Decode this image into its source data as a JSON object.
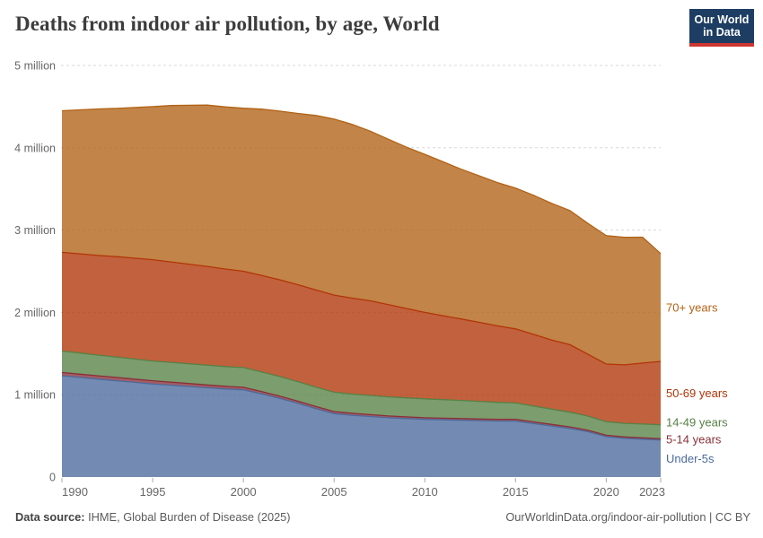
{
  "header": {
    "title": "Deaths from indoor air pollution, by age, World",
    "logo": {
      "line1": "Our World",
      "line2": "in Data",
      "bg_color": "#1d3d63",
      "accent_color": "#cd3730"
    }
  },
  "footer": {
    "source_label": "Data source:",
    "source_value": " IHME, Global Burden of Disease (2025)",
    "right_text": "OurWorldinData.org/indoor-air-pollution | CC BY"
  },
  "chart_data": {
    "type": "area",
    "stacked": true,
    "title": "Deaths from indoor air pollution, by age, World",
    "values_unit": "millions of deaths per year",
    "x": [
      1990,
      1991,
      1992,
      1993,
      1994,
      1995,
      1996,
      1997,
      1998,
      1999,
      2000,
      2001,
      2002,
      2003,
      2004,
      2005,
      2006,
      2007,
      2008,
      2009,
      2010,
      2011,
      2012,
      2013,
      2014,
      2015,
      2016,
      2017,
      2018,
      2019,
      2020,
      2021,
      2022,
      2023
    ],
    "series": [
      {
        "name": "Under-5s",
        "color": "#4C6A9C",
        "values": [
          1.23,
          1.21,
          1.19,
          1.17,
          1.15,
          1.13,
          1.115,
          1.1,
          1.085,
          1.07,
          1.06,
          1.01,
          0.955,
          0.895,
          0.83,
          0.77,
          0.75,
          0.735,
          0.72,
          0.71,
          0.7,
          0.695,
          0.69,
          0.685,
          0.68,
          0.68,
          0.65,
          0.62,
          0.59,
          0.55,
          0.49,
          0.47,
          0.46,
          0.45
        ]
      },
      {
        "name": "5-14 years",
        "color": "#883039",
        "values": [
          0.04,
          0.04,
          0.04,
          0.04,
          0.04,
          0.04,
          0.038,
          0.036,
          0.034,
          0.032,
          0.03,
          0.029,
          0.028,
          0.027,
          0.026,
          0.025,
          0.024,
          0.023,
          0.022,
          0.021,
          0.02,
          0.02,
          0.02,
          0.02,
          0.02,
          0.02,
          0.02,
          0.019,
          0.019,
          0.018,
          0.018,
          0.017,
          0.016,
          0.015
        ]
      },
      {
        "name": "14-49 years",
        "color": "#578145",
        "values": [
          0.26,
          0.256,
          0.252,
          0.248,
          0.244,
          0.24,
          0.24,
          0.24,
          0.24,
          0.24,
          0.24,
          0.239,
          0.238,
          0.237,
          0.236,
          0.235,
          0.234,
          0.233,
          0.232,
          0.231,
          0.23,
          0.225,
          0.22,
          0.214,
          0.207,
          0.2,
          0.193,
          0.186,
          0.179,
          0.172,
          0.165,
          0.166,
          0.168,
          0.17
        ]
      },
      {
        "name": "50-69 years",
        "color": "#B13507",
        "values": [
          1.2,
          1.205,
          1.21,
          1.22,
          1.225,
          1.23,
          1.22,
          1.21,
          1.2,
          1.185,
          1.17,
          1.172,
          1.175,
          1.178,
          1.18,
          1.18,
          1.165,
          1.15,
          1.12,
          1.085,
          1.05,
          1.02,
          0.99,
          0.96,
          0.93,
          0.9,
          0.87,
          0.84,
          0.82,
          0.75,
          0.7,
          0.71,
          0.74,
          0.77
        ]
      },
      {
        "name": "70+ years",
        "color": "#B16214",
        "values": [
          1.72,
          1.75,
          1.78,
          1.8,
          1.83,
          1.86,
          1.9,
          1.93,
          1.96,
          1.97,
          1.98,
          2.02,
          2.05,
          2.08,
          2.12,
          2.14,
          2.11,
          2.06,
          2.01,
          1.96,
          1.92,
          1.87,
          1.82,
          1.78,
          1.74,
          1.71,
          1.69,
          1.66,
          1.63,
          1.59,
          1.56,
          1.55,
          1.53,
          1.31
        ]
      }
    ],
    "ylim": [
      0,
      5
    ],
    "yticks": [
      {
        "value": 0,
        "label": "0"
      },
      {
        "value": 1,
        "label": "1 million"
      },
      {
        "value": 2,
        "label": "2 million"
      },
      {
        "value": 3,
        "label": "3 million"
      },
      {
        "value": 4,
        "label": "4 million"
      },
      {
        "value": 5,
        "label": "5 million"
      }
    ],
    "xticks": [
      1990,
      1995,
      2000,
      2005,
      2010,
      2015,
      2020,
      2023
    ],
    "grid": "horizontal dashed",
    "legend_position": "right of plot, colored text labels",
    "fill_opacity": 0.78
  }
}
